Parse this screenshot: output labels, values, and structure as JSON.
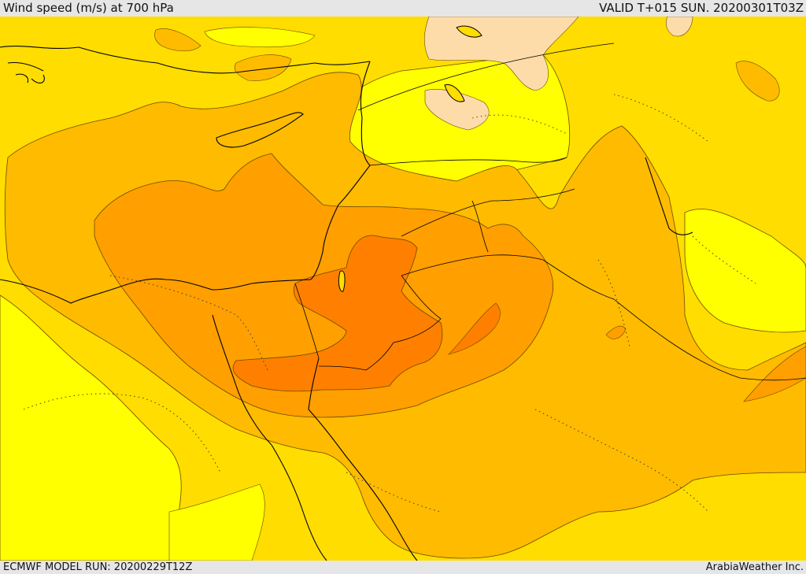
{
  "header": {
    "title": "Wind speed (m/s) at 700 hPa",
    "valid_time": "VALID T+015 SUN. 20200301T03Z"
  },
  "footer": {
    "model_run": "ECMWF MODEL RUN: 20200229T12Z",
    "credit": "ArabiaWeather Inc."
  },
  "colors": {
    "band_1": "#ffff00",
    "band_2": "#ffdd00",
    "band_3": "#ffbb00",
    "band_4": "#ff9f00",
    "band_5": "#ff8000",
    "band_6": "#fddcaa",
    "coastline": "#000000",
    "contour": "#6b4a00"
  }
}
